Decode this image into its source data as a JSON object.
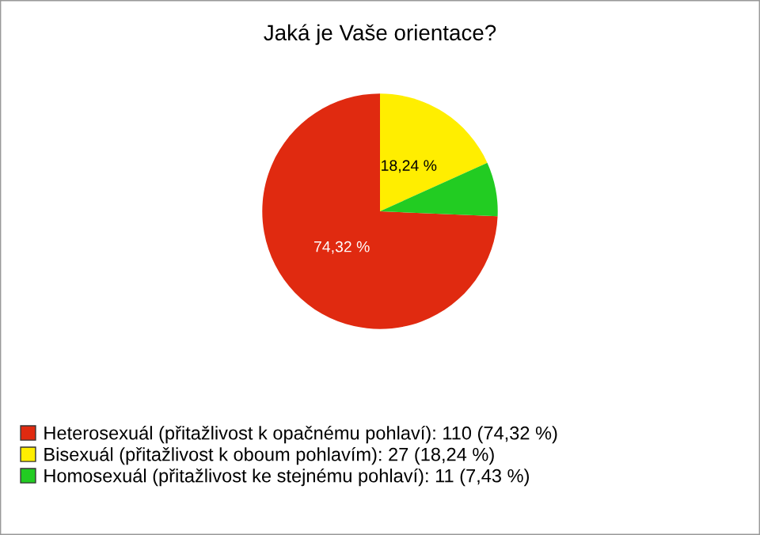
{
  "chart_data": {
    "type": "pie",
    "title": "Jaká je Vaše orientace?",
    "categories": [
      "Heterosexuál (přitažlivost k opačnému pohlaví): 110 (74,32 %)",
      "Bisexuál (přitažlivost k oboum pohlavím): 27 (18,24 %)",
      "Homosexuál (přitažlivost ke stejnému pohlaví): 11 (7,43 %)"
    ],
    "values": [
      74.32,
      18.24,
      7.43
    ],
    "colors": [
      "#e02a10",
      "#ffee00",
      "#22cc22"
    ],
    "value_labels": [
      "74,32 %",
      "18,24 %",
      null
    ],
    "legend": "bottom left"
  }
}
